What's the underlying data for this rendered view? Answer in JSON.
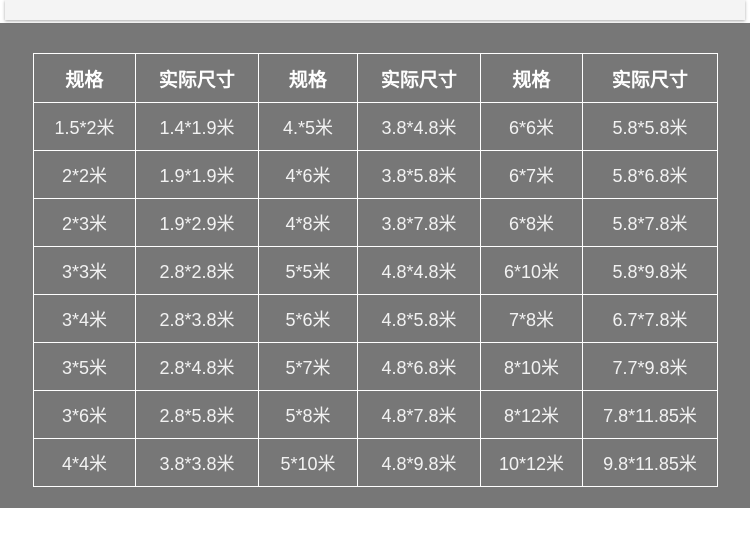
{
  "table": {
    "headers": [
      "规格",
      "实际尺寸",
      "规格",
      "实际尺寸",
      "规格",
      "实际尺寸"
    ],
    "rows": [
      [
        "1.5*2米",
        "1.4*1.9米",
        "4.*5米",
        "3.8*4.8米",
        "6*6米",
        "5.8*5.8米"
      ],
      [
        "2*2米",
        "1.9*1.9米",
        "4*6米",
        "3.8*5.8米",
        "6*7米",
        "5.8*6.8米"
      ],
      [
        "2*3米",
        "1.9*2.9米",
        "4*8米",
        "3.8*7.8米",
        "6*8米",
        "5.8*7.8米"
      ],
      [
        "3*3米",
        "2.8*2.8米",
        "5*5米",
        "4.8*4.8米",
        "6*10米",
        "5.8*9.8米"
      ],
      [
        "3*4米",
        "2.8*3.8米",
        "5*6米",
        "4.8*5.8米",
        "7*8米",
        "6.7*7.8米"
      ],
      [
        "3*5米",
        "2.8*4.8米",
        "5*7米",
        "4.8*6.8米",
        "8*10米",
        "7.7*9.8米"
      ],
      [
        "3*6米",
        "2.8*5.8米",
        "5*8米",
        "4.8*7.8米",
        "8*12米",
        "7.8*11.85米"
      ],
      [
        "4*4米",
        "3.8*3.8米",
        "5*10米",
        "4.8*9.8米",
        "10*12米",
        "9.8*11.85米"
      ]
    ]
  },
  "colors": {
    "band": "#777777",
    "text": "#f2f2f2",
    "grid": "#ffffff"
  }
}
